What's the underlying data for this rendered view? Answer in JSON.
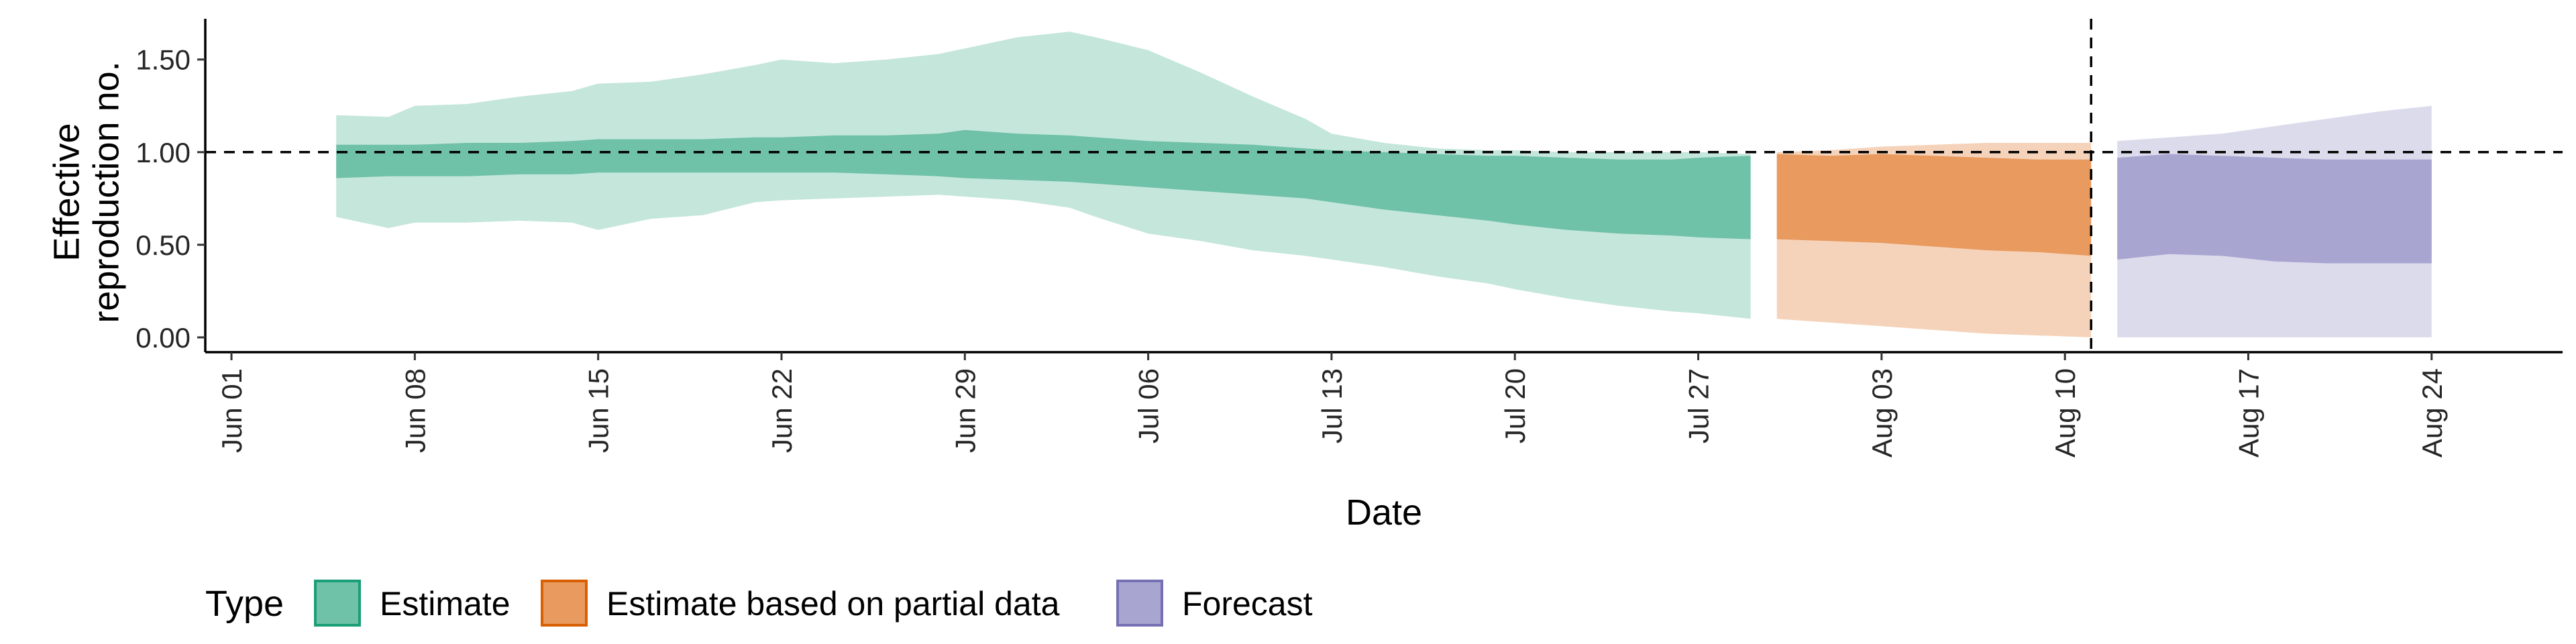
{
  "chart_data": {
    "type": "area",
    "xlabel": "Date",
    "ylabel_lines": [
      "Effective",
      "reproduction no."
    ],
    "x_range": [
      "2020-05-31",
      "2020-08-29"
    ],
    "ylim": [
      -0.08,
      1.72
    ],
    "y_ticks": [
      {
        "value": 0.0,
        "label": "0.00"
      },
      {
        "value": 0.5,
        "label": "0.50"
      },
      {
        "value": 1.0,
        "label": "1.00"
      },
      {
        "value": 1.5,
        "label": "1.50"
      }
    ],
    "x_ticks": [
      {
        "date": "2020-06-01",
        "label": "Jun 01"
      },
      {
        "date": "2020-06-08",
        "label": "Jun 08"
      },
      {
        "date": "2020-06-15",
        "label": "Jun 15"
      },
      {
        "date": "2020-06-22",
        "label": "Jun 22"
      },
      {
        "date": "2020-06-29",
        "label": "Jun 29"
      },
      {
        "date": "2020-07-06",
        "label": "Jul 06"
      },
      {
        "date": "2020-07-13",
        "label": "Jul 13"
      },
      {
        "date": "2020-07-20",
        "label": "Jul 20"
      },
      {
        "date": "2020-07-27",
        "label": "Jul 27"
      },
      {
        "date": "2020-08-03",
        "label": "Aug 03"
      },
      {
        "date": "2020-08-10",
        "label": "Aug 10"
      },
      {
        "date": "2020-08-17",
        "label": "Aug 17"
      },
      {
        "date": "2020-08-24",
        "label": "Aug 24"
      }
    ],
    "reference_hline": 1.0,
    "reference_vline": "2020-08-11",
    "legend": {
      "title": "Type",
      "position": "bottom",
      "entries": [
        {
          "label": "Estimate",
          "fill": "#6fc1a8",
          "border": "#1b9e77"
        },
        {
          "label": "Estimate based on partial data",
          "fill": "#e89a5f",
          "border": "#d95f02"
        },
        {
          "label": "Forecast",
          "fill": "#a8a5d1",
          "border": "#7570b3"
        }
      ]
    },
    "series": [
      {
        "name": "Estimate",
        "inner_color": "#6fc1a8",
        "outer_color": "#c4e6db",
        "x": [
          "2020-06-05",
          "2020-06-07",
          "2020-06-08",
          "2020-06-10",
          "2020-06-12",
          "2020-06-14",
          "2020-06-15",
          "2020-06-17",
          "2020-06-19",
          "2020-06-21",
          "2020-06-22",
          "2020-06-24",
          "2020-06-26",
          "2020-06-28",
          "2020-06-29",
          "2020-07-01",
          "2020-07-03",
          "2020-07-04",
          "2020-07-06",
          "2020-07-08",
          "2020-07-10",
          "2020-07-12",
          "2020-07-13",
          "2020-07-15",
          "2020-07-17",
          "2020-07-19",
          "2020-07-20",
          "2020-07-22",
          "2020-07-24",
          "2020-07-26",
          "2020-07-27",
          "2020-07-29"
        ],
        "outer_lower": [
          0.65,
          0.59,
          0.62,
          0.62,
          0.63,
          0.62,
          0.58,
          0.64,
          0.66,
          0.73,
          0.74,
          0.75,
          0.76,
          0.77,
          0.76,
          0.74,
          0.7,
          0.65,
          0.56,
          0.52,
          0.47,
          0.44,
          0.42,
          0.38,
          0.33,
          0.29,
          0.26,
          0.21,
          0.17,
          0.14,
          0.13,
          0.1
        ],
        "inner_lower": [
          0.86,
          0.87,
          0.87,
          0.87,
          0.88,
          0.88,
          0.89,
          0.89,
          0.89,
          0.89,
          0.89,
          0.89,
          0.88,
          0.87,
          0.86,
          0.85,
          0.84,
          0.83,
          0.81,
          0.79,
          0.77,
          0.75,
          0.73,
          0.69,
          0.66,
          0.63,
          0.61,
          0.58,
          0.56,
          0.55,
          0.54,
          0.53
        ],
        "inner_upper": [
          1.04,
          1.04,
          1.04,
          1.05,
          1.05,
          1.06,
          1.07,
          1.07,
          1.07,
          1.08,
          1.08,
          1.09,
          1.09,
          1.1,
          1.12,
          1.1,
          1.09,
          1.08,
          1.06,
          1.05,
          1.04,
          1.02,
          1.01,
          1.0,
          0.99,
          0.98,
          0.98,
          0.97,
          0.96,
          0.96,
          0.97,
          0.98
        ],
        "outer_upper": [
          1.2,
          1.19,
          1.25,
          1.26,
          1.3,
          1.33,
          1.37,
          1.38,
          1.42,
          1.47,
          1.5,
          1.48,
          1.5,
          1.53,
          1.56,
          1.62,
          1.65,
          1.62,
          1.55,
          1.43,
          1.3,
          1.18,
          1.1,
          1.05,
          1.02,
          1.01,
          1.01,
          1.0,
          1.0,
          1.0,
          1.0,
          0.99
        ]
      },
      {
        "name": "Estimate based on partial data",
        "inner_color": "#e89a5f",
        "outer_color": "#f5d3ba",
        "x": [
          "2020-07-30",
          "2020-08-01",
          "2020-08-03",
          "2020-08-05",
          "2020-08-07",
          "2020-08-09",
          "2020-08-11"
        ],
        "outer_lower": [
          0.1,
          0.08,
          0.06,
          0.04,
          0.02,
          0.01,
          0.0
        ],
        "inner_lower": [
          0.53,
          0.52,
          0.51,
          0.49,
          0.47,
          0.46,
          0.44
        ],
        "inner_upper": [
          0.99,
          0.98,
          0.99,
          0.98,
          0.97,
          0.96,
          0.96
        ],
        "outer_upper": [
          1.0,
          1.01,
          1.03,
          1.04,
          1.05,
          1.05,
          1.05
        ]
      },
      {
        "name": "Forecast",
        "inner_color": "#a8a5d1",
        "outer_color": "#dcdbec",
        "x": [
          "2020-08-12",
          "2020-08-14",
          "2020-08-16",
          "2020-08-18",
          "2020-08-20",
          "2020-08-22",
          "2020-08-24"
        ],
        "outer_lower": [
          0.0,
          0.0,
          0.0,
          0.0,
          0.0,
          0.0,
          0.0
        ],
        "inner_lower": [
          0.42,
          0.45,
          0.44,
          0.41,
          0.4,
          0.4,
          0.4
        ],
        "inner_upper": [
          0.97,
          0.99,
          0.98,
          0.97,
          0.96,
          0.96,
          0.96
        ],
        "outer_upper": [
          1.06,
          1.08,
          1.1,
          1.14,
          1.18,
          1.22,
          1.25
        ]
      }
    ]
  }
}
